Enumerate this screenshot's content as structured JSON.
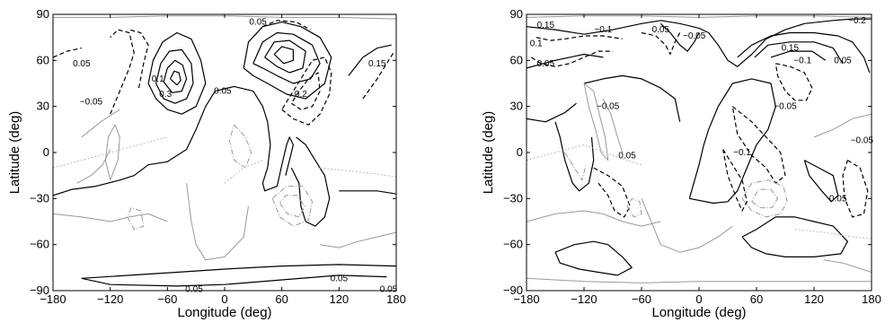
{
  "chart_data": [
    {
      "type": "contour",
      "xlabel": "Longitude (deg)",
      "ylabel": "Latitude (deg)",
      "xlim": [
        -180,
        180
      ],
      "ylim": [
        -90,
        90
      ],
      "xticks": [
        "−180",
        "−120",
        "−60",
        "0",
        "60",
        "120",
        "180"
      ],
      "yticks": [
        "−90",
        "−60",
        "−30",
        "0",
        "30",
        "60",
        "90"
      ],
      "grid": false,
      "contour_labels": [
        {
          "text": "0.05",
          "lon": -150,
          "lat": 58
        },
        {
          "text": "−0.05",
          "lon": -140,
          "lat": 33
        },
        {
          "text": "0.1",
          "lon": -70,
          "lat": 48
        },
        {
          "text": "0.3",
          "lon": -62,
          "lat": 38
        },
        {
          "text": "0.05",
          "lon": -2,
          "lat": 40
        },
        {
          "text": "0.05",
          "lon": 35,
          "lat": 85
        },
        {
          "text": "0.2",
          "lon": 80,
          "lat": 38
        },
        {
          "text": "0.15",
          "lon": 160,
          "lat": 58
        },
        {
          "text": "0.05",
          "lon": 120,
          "lat": -82
        },
        {
          "text": "0.05",
          "lon": -32,
          "lat": -89
        },
        {
          "text": "0.05",
          "lon": 172,
          "lat": -89
        }
      ]
    },
    {
      "type": "contour",
      "xlabel": "Longitude (deg)",
      "ylabel": "Latitude (deg)",
      "xlim": [
        -180,
        180
      ],
      "ylim": [
        -90,
        90
      ],
      "xticks": [
        "−180",
        "−120",
        "−60",
        "0",
        "60",
        "120",
        "180"
      ],
      "yticks": [
        "−90",
        "−60",
        "−30",
        "0",
        "30",
        "60",
        "90"
      ],
      "grid": false,
      "contour_labels": [
        {
          "text": "0.15",
          "lon": -160,
          "lat": 83
        },
        {
          "text": "−0.1",
          "lon": -100,
          "lat": 80
        },
        {
          "text": "0.1",
          "lon": -170,
          "lat": 71
        },
        {
          "text": "0.05",
          "lon": -160,
          "lat": 58
        },
        {
          "text": "0.05",
          "lon": -40,
          "lat": 80
        },
        {
          "text": "−0.05",
          "lon": -5,
          "lat": 76
        },
        {
          "text": "−0.2",
          "lon": 165,
          "lat": 86
        },
        {
          "text": "0.15",
          "lon": 95,
          "lat": 68
        },
        {
          "text": "−0.1",
          "lon": 108,
          "lat": 60
        },
        {
          "text": "0.05",
          "lon": 150,
          "lat": 60
        },
        {
          "text": "−0.05",
          "lon": 90,
          "lat": 30
        },
        {
          "text": "−0.05",
          "lon": -95,
          "lat": 30
        },
        {
          "text": "−0.1",
          "lon": 45,
          "lat": 0
        },
        {
          "text": "0.05",
          "lon": -75,
          "lat": -2
        },
        {
          "text": "−0.05",
          "lon": 170,
          "lat": 8
        },
        {
          "text": "0.05",
          "lon": 145,
          "lat": -30
        }
      ]
    }
  ]
}
